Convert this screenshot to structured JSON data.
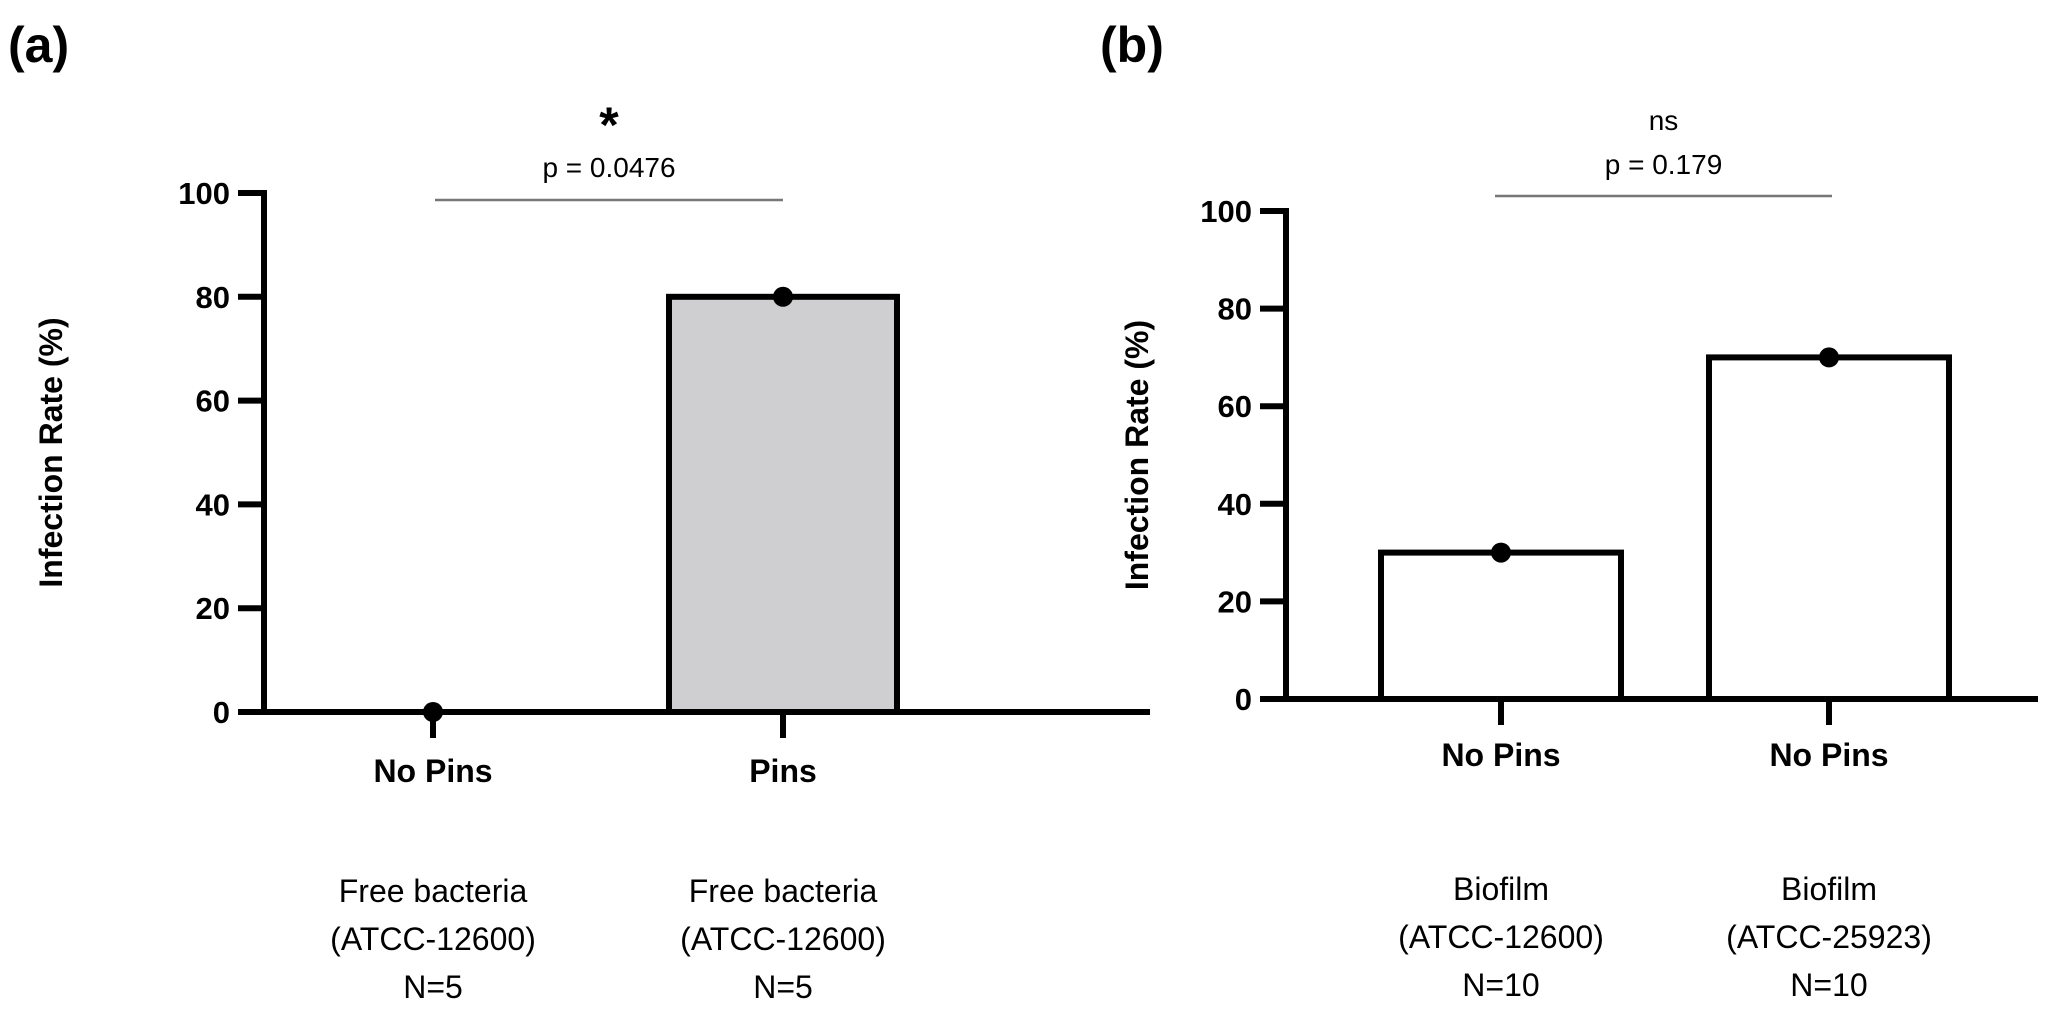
{
  "chart_data": [
    {
      "type": "bar",
      "panel_label": "(a)",
      "ylabel": "Infection Rate (%)",
      "xlabel": "",
      "ylim": [
        0,
        100
      ],
      "yticks": [
        0,
        20,
        40,
        60,
        80,
        100
      ],
      "grid": false,
      "categories": [
        "No Pins",
        "Pins"
      ],
      "group_labels": [
        [
          "Free bacteria",
          "(ATCC-12600)",
          "N=5"
        ],
        [
          "Free bacteria",
          "(ATCC-12600)",
          "N=5"
        ]
      ],
      "values": [
        0,
        80
      ],
      "points": [
        0,
        80
      ],
      "bar_fill": [
        "#ffffff",
        "#cfcfd1"
      ],
      "significance": {
        "star": "*",
        "text": "p = 0.0476",
        "between": [
          0,
          1
        ]
      }
    },
    {
      "type": "bar",
      "panel_label": "(b)",
      "ylabel": "Infection Rate (%)",
      "xlabel": "",
      "ylim": [
        0,
        100
      ],
      "yticks": [
        0,
        20,
        40,
        60,
        80,
        100
      ],
      "grid": false,
      "categories": [
        "No Pins",
        "No Pins"
      ],
      "group_labels": [
        [
          "Biofilm",
          "(ATCC-12600)",
          "N=10"
        ],
        [
          "Biofilm",
          "(ATCC-25923)",
          "N=10"
        ]
      ],
      "values": [
        30,
        70
      ],
      "points": [
        30,
        70
      ],
      "bar_fill": [
        "#ffffff",
        "#ffffff"
      ],
      "significance": {
        "star": "ns",
        "text": "p = 0.179",
        "between": [
          0,
          1
        ]
      }
    }
  ],
  "colors": {
    "axis": "#000000",
    "sig_line": "#777777"
  }
}
